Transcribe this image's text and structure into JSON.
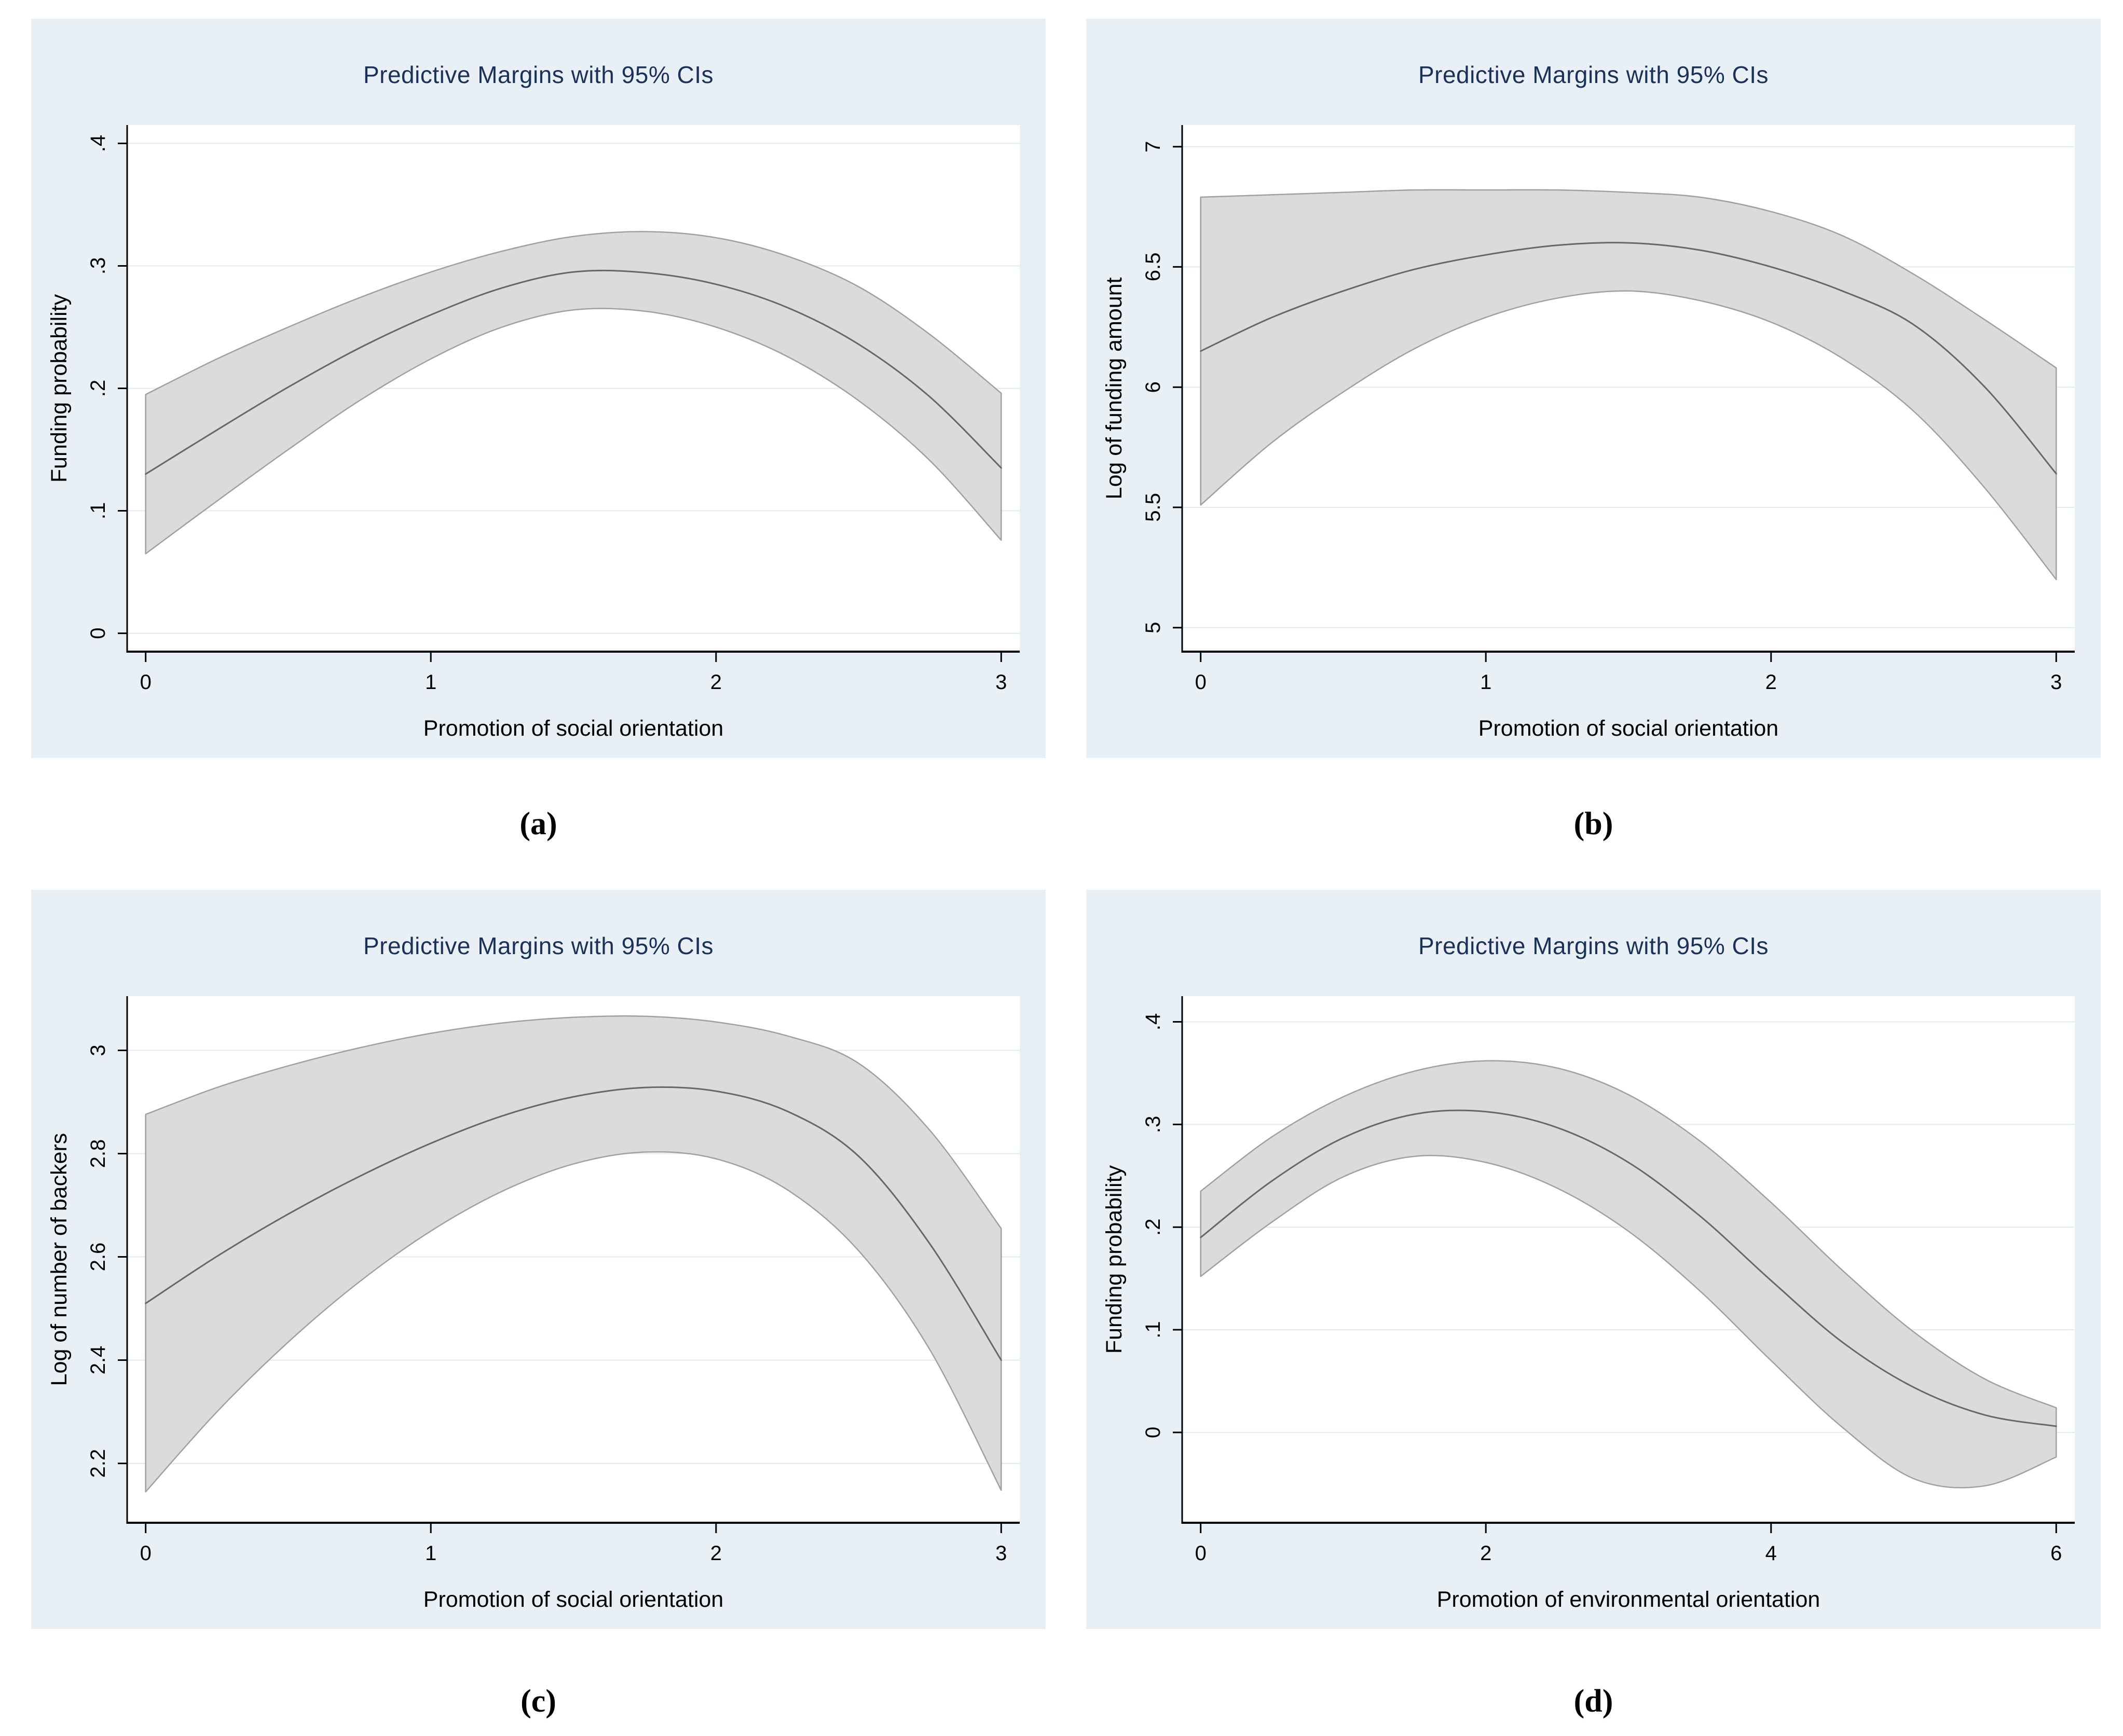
{
  "style": {
    "page_bg": "#ffffff",
    "panel_bg": "#e9f0f5",
    "plot_bg": "#ffffff",
    "grid_color": "#dfebf1",
    "band_fill": "#dbdbdb",
    "band_stroke": "#a0a0a0",
    "line_color": "#676767",
    "axis_color": "#000000",
    "title_color": "#1b3157"
  },
  "chart_data": [
    {
      "type": "area",
      "panel_label": "(a)",
      "title": "Predictive Margins with 95% CIs",
      "xlabel": "Promotion of social orientation",
      "ylabel": "Funding probability",
      "legend": "none",
      "grid": "horizontal",
      "xlim": [
        -0.065,
        3.065
      ],
      "ylim": [
        -0.015,
        0.415
      ],
      "x_ticks": [
        0,
        1,
        2,
        3
      ],
      "x_tick_labels": [
        "0",
        "1",
        "2",
        "3"
      ],
      "y_ticks": [
        0,
        0.1,
        0.2,
        0.3,
        0.4
      ],
      "y_tick_labels": [
        "0",
        ".1",
        ".2",
        ".3",
        ".4"
      ],
      "x": [
        0,
        0.25,
        0.5,
        0.75,
        1,
        1.25,
        1.5,
        1.75,
        2,
        2.25,
        2.5,
        2.75,
        3
      ],
      "mean": [
        0.13,
        0.166,
        0.201,
        0.233,
        0.26,
        0.282,
        0.295,
        0.2945,
        0.285,
        0.266,
        0.236,
        0.193,
        0.135
      ],
      "band": {
        "upper": [
          0.195,
          0.224,
          0.25,
          0.274,
          0.295,
          0.312,
          0.324,
          0.328,
          0.323,
          0.308,
          0.283,
          0.244,
          0.196
        ],
        "lower": [
          0.065,
          0.108,
          0.15,
          0.19,
          0.224,
          0.25,
          0.264,
          0.263,
          0.25,
          0.226,
          0.19,
          0.141,
          0.076
        ]
      },
      "series_names": [
        "Predictive margin",
        "95% CI upper",
        "95% CI lower"
      ]
    },
    {
      "type": "area",
      "panel_label": "(b)",
      "title": "Predictive Margins with 95% CIs",
      "xlabel": "Promotion of social orientation",
      "ylabel": "Log of funding amount",
      "legend": "none",
      "grid": "horizontal",
      "xlim": [
        -0.065,
        3.065
      ],
      "ylim": [
        4.9,
        7.09
      ],
      "x_ticks": [
        0,
        1,
        2,
        3
      ],
      "x_tick_labels": [
        "0",
        "1",
        "2",
        "3"
      ],
      "y_ticks": [
        5,
        5.5,
        6,
        6.5,
        7
      ],
      "y_tick_labels": [
        "5",
        "5.5",
        "6",
        "6.5",
        "7"
      ],
      "x": [
        0,
        0.25,
        0.5,
        0.75,
        1,
        1.25,
        1.5,
        1.75,
        2,
        2.25,
        2.5,
        2.75,
        3
      ],
      "mean": [
        6.15,
        6.29,
        6.4,
        6.49,
        6.55,
        6.59,
        6.6,
        6.57,
        6.5,
        6.4,
        6.26,
        6.0,
        5.64
      ],
      "band": {
        "upper": [
          6.79,
          6.8,
          6.81,
          6.82,
          6.82,
          6.82,
          6.81,
          6.79,
          6.73,
          6.63,
          6.47,
          6.28,
          6.08
        ],
        "lower": [
          5.51,
          5.77,
          5.98,
          6.16,
          6.29,
          6.37,
          6.4,
          6.36,
          6.27,
          6.12,
          5.9,
          5.58,
          5.2
        ]
      },
      "series_names": [
        "Predictive margin",
        "95% CI upper",
        "95% CI lower"
      ]
    },
    {
      "type": "area",
      "panel_label": "(c)",
      "title": "Predictive Margins with 95% CIs",
      "xlabel": "Promotion of social orientation",
      "ylabel": "Log of number of backers",
      "legend": "none",
      "grid": "horizontal",
      "xlim": [
        -0.065,
        3.065
      ],
      "ylim": [
        2.085,
        3.105
      ],
      "x_ticks": [
        0,
        1,
        2,
        3
      ],
      "x_tick_labels": [
        "0",
        "1",
        "2",
        "3"
      ],
      "y_ticks": [
        2.2,
        2.4,
        2.6,
        2.8,
        3
      ],
      "y_tick_labels": [
        "2.2",
        "2.4",
        "2.6",
        "2.8",
        "3"
      ],
      "x": [
        0,
        0.25,
        0.5,
        0.75,
        1,
        1.25,
        1.5,
        1.75,
        2,
        2.25,
        2.5,
        2.75,
        3
      ],
      "mean": [
        2.51,
        2.601,
        2.683,
        2.756,
        2.82,
        2.873,
        2.91,
        2.928,
        2.921,
        2.882,
        2.795,
        2.625,
        2.4
      ],
      "band": {
        "upper": [
          2.876,
          2.928,
          2.97,
          3.005,
          3.033,
          3.053,
          3.064,
          3.066,
          3.055,
          3.028,
          2.975,
          2.845,
          2.655
        ],
        "lower": [
          2.145,
          2.3,
          2.435,
          2.552,
          2.65,
          2.727,
          2.78,
          2.803,
          2.79,
          2.73,
          2.612,
          2.42,
          2.148
        ]
      },
      "series_names": [
        "Predictive margin",
        "95% CI upper",
        "95% CI lower"
      ]
    },
    {
      "type": "area",
      "panel_label": "(d)",
      "title": "Predictive Margins with 95% CIs",
      "xlabel": "Promotion of environmental orientation",
      "ylabel": "Funding probability",
      "legend": "none",
      "grid": "horizontal",
      "xlim": [
        -0.13,
        6.13
      ],
      "ylim": [
        -0.088,
        0.425
      ],
      "x_ticks": [
        0,
        2,
        4,
        6
      ],
      "x_tick_labels": [
        "0",
        "2",
        "4",
        "6"
      ],
      "y_ticks": [
        0,
        0.1,
        0.2,
        0.3,
        0.4
      ],
      "y_tick_labels": [
        "0",
        ".1",
        ".2",
        ".3",
        ".4"
      ],
      "x": [
        0,
        0.5,
        1,
        1.5,
        2,
        2.5,
        3,
        3.5,
        4,
        4.5,
        5,
        5.5,
        6
      ],
      "mean": [
        0.19,
        0.245,
        0.287,
        0.31,
        0.3125,
        0.297,
        0.263,
        0.211,
        0.148,
        0.088,
        0.044,
        0.017,
        0.006
      ],
      "band": {
        "upper": [
          0.235,
          0.288,
          0.327,
          0.352,
          0.362,
          0.355,
          0.329,
          0.284,
          0.224,
          0.158,
          0.098,
          0.052,
          0.024
        ],
        "lower": [
          0.152,
          0.205,
          0.249,
          0.269,
          0.263,
          0.238,
          0.196,
          0.138,
          0.07,
          0.005,
          -0.045,
          -0.052,
          -0.024
        ]
      },
      "series_names": [
        "Predictive margin",
        "95% CI upper",
        "95% CI lower"
      ]
    }
  ]
}
